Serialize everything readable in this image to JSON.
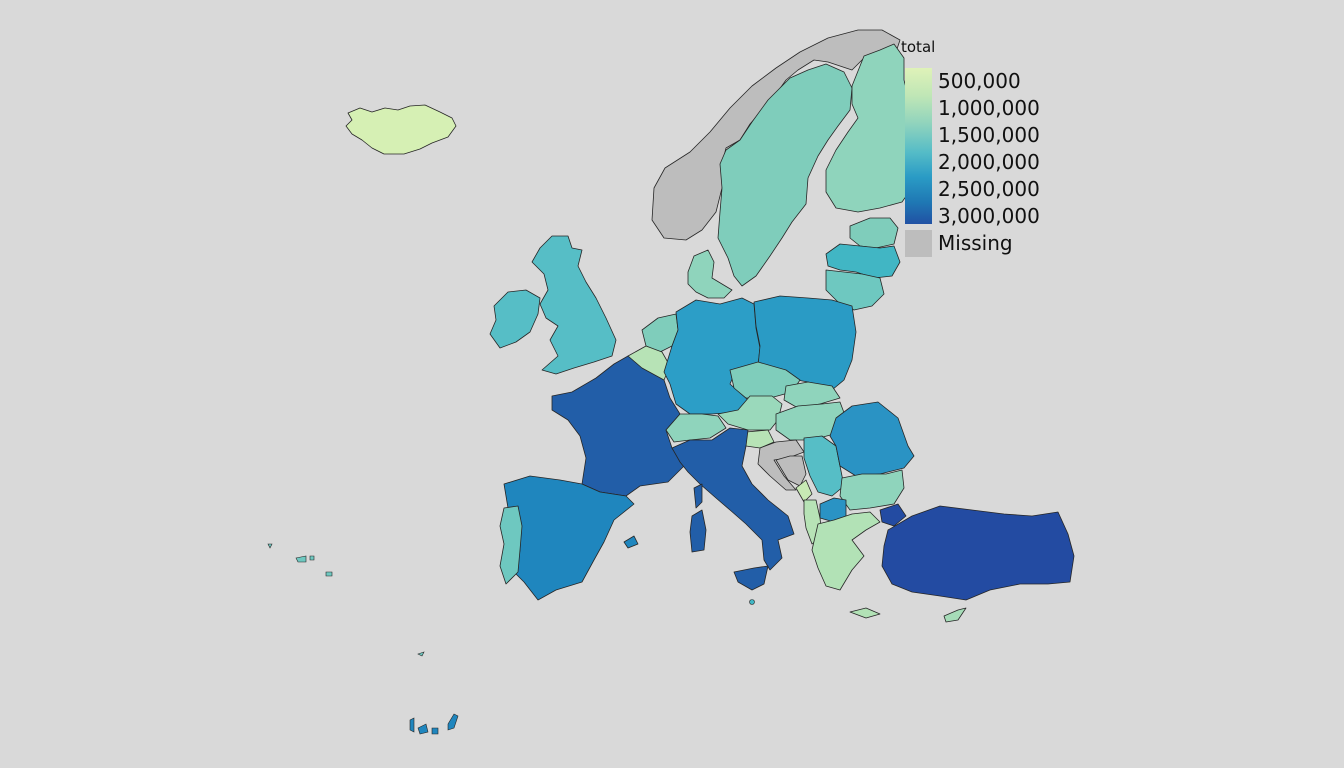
{
  "legend": {
    "title": "total",
    "ticks": [
      "500,000",
      "1,000,000",
      "1,500,000",
      "2,000,000",
      "2,500,000",
      "3,000,000"
    ],
    "missing_label": "Missing",
    "colors": {
      "low": "#dff2b8",
      "mid": "#55bcc7",
      "high": "#2151a4",
      "missing": "#bdbdbd"
    }
  },
  "regions": [
    {
      "name": "Iceland",
      "color": "#d6f0b4"
    },
    {
      "name": "Norway",
      "color": "#bdbdbd"
    },
    {
      "name": "Sweden",
      "color": "#7fcdbb"
    },
    {
      "name": "Finland",
      "color": "#8fd4bc"
    },
    {
      "name": "Estonia",
      "color": "#7fcdbb"
    },
    {
      "name": "Latvia",
      "color": "#41b6c4"
    },
    {
      "name": "Lithuania",
      "color": "#6ec8c0"
    },
    {
      "name": "Denmark",
      "color": "#8fd4bc"
    },
    {
      "name": "United Kingdom",
      "color": "#56bec6"
    },
    {
      "name": "Ireland",
      "color": "#56bec6"
    },
    {
      "name": "Netherlands",
      "color": "#7fcdbb"
    },
    {
      "name": "Belgium",
      "color": "#b7e3b6"
    },
    {
      "name": "Germany",
      "color": "#2c9ec7"
    },
    {
      "name": "Poland",
      "color": "#2a9bc5"
    },
    {
      "name": "France",
      "color": "#225ea8"
    },
    {
      "name": "Czechia",
      "color": "#7fcdbb"
    },
    {
      "name": "Slovakia",
      "color": "#8fd4bc"
    },
    {
      "name": "Austria",
      "color": "#9ad9bb"
    },
    {
      "name": "Hungary",
      "color": "#8fd4bc"
    },
    {
      "name": "Switzerland",
      "color": "#8fd4bc"
    },
    {
      "name": "Slovenia",
      "color": "#b7e3b6"
    },
    {
      "name": "Croatia",
      "color": "#bdbdbd"
    },
    {
      "name": "Bosnia",
      "color": "#bdbdbd"
    },
    {
      "name": "Serbia",
      "color": "#56bec6"
    },
    {
      "name": "Romania",
      "color": "#2a93c4"
    },
    {
      "name": "Bulgaria",
      "color": "#8fd4bc"
    },
    {
      "name": "Montenegro",
      "color": "#c7e9b4"
    },
    {
      "name": "North Macedonia",
      "color": "#2a93c4"
    },
    {
      "name": "Albania",
      "color": "#b7e3b6"
    },
    {
      "name": "Greece",
      "color": "#b2e2b6"
    },
    {
      "name": "Italy",
      "color": "#225ea8"
    },
    {
      "name": "Spain",
      "color": "#1f86be"
    },
    {
      "name": "Portugal",
      "color": "#6ec8c0"
    },
    {
      "name": "Turkey",
      "color": "#234ba2"
    },
    {
      "name": "Cyprus",
      "color": "#a6dcb8"
    },
    {
      "name": "Malta",
      "color": "#41b6c4"
    },
    {
      "name": "Canary Islands",
      "color": "#1f86be"
    },
    {
      "name": "Azores",
      "color": "#6ec8c0"
    },
    {
      "name": "Madeira",
      "color": "#6ec8c0"
    }
  ]
}
